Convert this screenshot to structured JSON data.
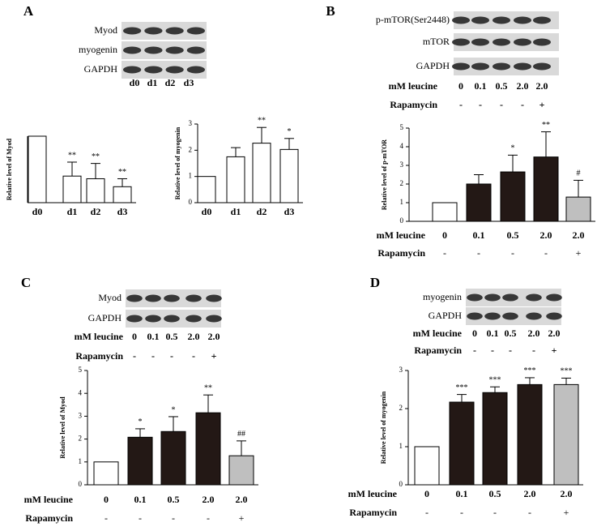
{
  "blots": [
    {
      "letter": "A",
      "rows": [
        "Myod",
        "myogenin",
        "GAPDH"
      ],
      "lanes": [
        "d0",
        "d1",
        "d2",
        "d3"
      ]
    },
    {
      "letter": "B",
      "rows": [
        "p-mTOR(Ser2448)",
        "mTOR",
        "GAPDH"
      ],
      "lane_rows": [
        {
          "label": "mM leucine",
          "values": [
            "0",
            "0.1",
            "0.5",
            "2.0",
            "2.0"
          ]
        },
        {
          "label": "Rapamycin",
          "values": [
            "-",
            "-",
            "-",
            "-",
            "+"
          ]
        }
      ]
    },
    {
      "letter": "C",
      "rows": [
        "Myod",
        "GAPDH"
      ],
      "lane_rows": [
        {
          "label": "mM leucine",
          "values": [
            "0",
            "0.1",
            "0.5",
            "2.0",
            "2.0"
          ]
        },
        {
          "label": "Rapamycin",
          "values": [
            "-",
            "-",
            "-",
            "-",
            "+"
          ]
        }
      ]
    },
    {
      "letter": "D",
      "rows": [
        "myogenin",
        "GAPDH"
      ],
      "lane_rows": [
        {
          "label": "mM leucine",
          "values": [
            "0",
            "0.1",
            "0.5",
            "2.0",
            "2.0"
          ]
        },
        {
          "label": "Rapamycin",
          "values": [
            "-",
            "-",
            "-",
            "-",
            "+"
          ]
        }
      ]
    }
  ],
  "chart_data": [
    {
      "type": "bar",
      "ylabel": "Relative level of Myod",
      "categories": [
        "d0",
        "d1",
        "d2",
        "d3"
      ],
      "values": [
        1,
        0.4,
        0.36,
        0.24
      ],
      "errors": [
        null,
        0.21,
        0.23,
        0.12
      ],
      "annotations": [
        null,
        "**",
        "**",
        "**"
      ],
      "colors": [
        "#ffffff",
        "#ffffff",
        "#ffffff",
        "#ffffff"
      ],
      "ylim": [
        0,
        1
      ]
    },
    {
      "type": "bar",
      "ylabel": "Relative level of myogenin",
      "categories": [
        "d0",
        "d1",
        "d2",
        "d3"
      ],
      "values": [
        1,
        1.75,
        2.27,
        2.03
      ],
      "errors": [
        null,
        0.35,
        0.6,
        0.42
      ],
      "annotations": [
        null,
        null,
        "**",
        "*"
      ],
      "colors": [
        "#ffffff",
        "#ffffff",
        "#ffffff",
        "#ffffff"
      ],
      "ylim": [
        0,
        3
      ],
      "yticks": [
        0,
        1,
        2,
        3
      ]
    },
    {
      "type": "bar",
      "ylabel": "Relative level of p-mTOR",
      "xlabel": "mM leucine",
      "categories": [
        "0",
        "0.1",
        "0.5",
        "2.0",
        "2.0"
      ],
      "rapamycin_label": "Rapamycin",
      "rapamycin": [
        "-",
        "-",
        "-",
        "-",
        "+"
      ],
      "values": [
        1,
        2.0,
        2.65,
        3.45,
        1.3
      ],
      "errors": [
        null,
        0.5,
        0.9,
        1.35,
        0.9
      ],
      "annotations": [
        null,
        null,
        "*",
        "**",
        "#"
      ],
      "colors": [
        "#ffffff",
        "#231815",
        "#231815",
        "#231815",
        "#bfbfbf"
      ],
      "ylim": [
        0,
        5
      ],
      "yticks": [
        0,
        1,
        2,
        3,
        4,
        5
      ]
    },
    {
      "type": "bar",
      "ylabel": "Relative level of Myod",
      "xlabel": "mM leucine",
      "categories": [
        "0",
        "0.1",
        "0.5",
        "2.0",
        "2.0"
      ],
      "rapamycin_label": "Rapamycin",
      "rapamycin": [
        "-",
        "-",
        "-",
        "-",
        "+"
      ],
      "values": [
        1,
        2.08,
        2.33,
        3.15,
        1.27
      ],
      "errors": [
        null,
        0.37,
        0.65,
        0.78,
        0.65
      ],
      "annotations": [
        null,
        "*",
        "*",
        "**",
        "##"
      ],
      "colors": [
        "#ffffff",
        "#231815",
        "#231815",
        "#231815",
        "#bfbfbf"
      ],
      "ylim": [
        0,
        5
      ],
      "yticks": [
        0,
        1,
        2,
        3,
        4,
        5
      ]
    },
    {
      "type": "bar",
      "ylabel": "Relative level of myogenin",
      "xlabel": "mM leucine",
      "categories": [
        "0",
        "0.1",
        "0.5",
        "2.0",
        "2.0"
      ],
      "rapamycin_label": "Rapamycin",
      "rapamycin": [
        "-",
        "-",
        "-",
        "-",
        "+"
      ],
      "values": [
        1,
        2.17,
        2.42,
        2.63,
        2.63
      ],
      "errors": [
        null,
        0.2,
        0.15,
        0.18,
        0.17
      ],
      "annotations": [
        null,
        "***",
        "***",
        "***",
        "***"
      ],
      "colors": [
        "#ffffff",
        "#231815",
        "#231815",
        "#231815",
        "#bfbfbf"
      ],
      "ylim": [
        0,
        3
      ],
      "yticks": [
        0,
        1,
        2,
        3
      ]
    }
  ]
}
